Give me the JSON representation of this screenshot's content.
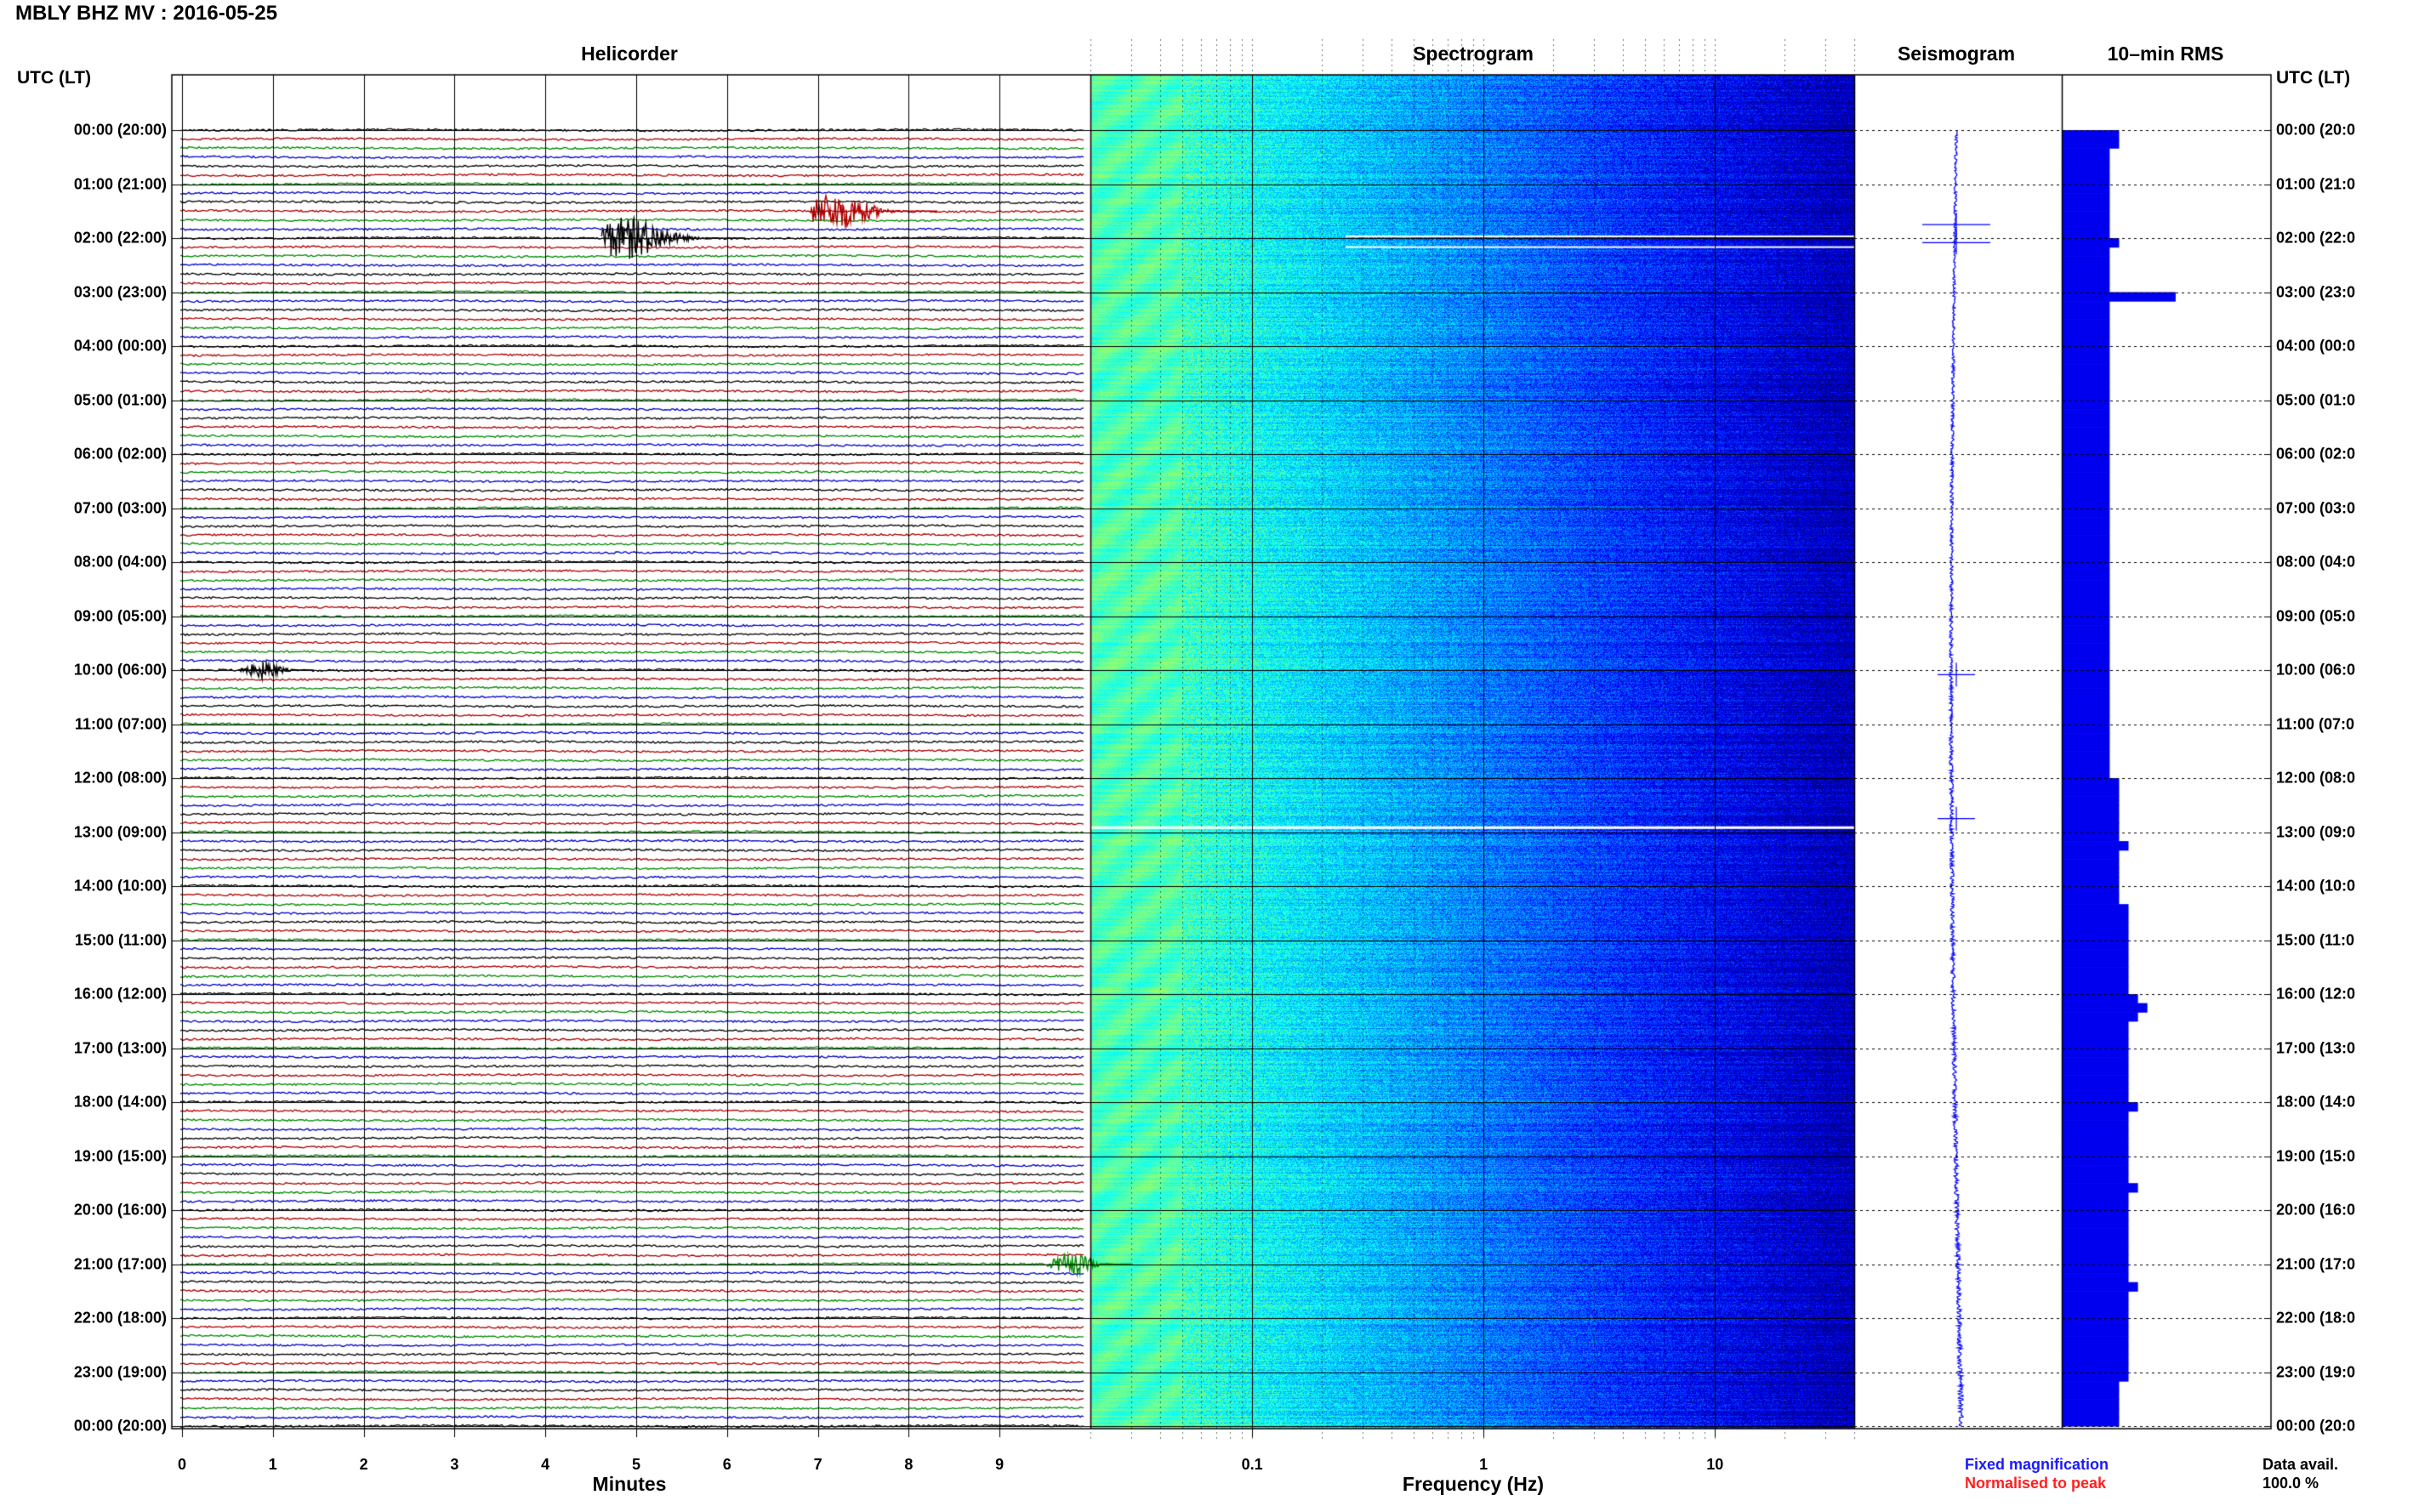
{
  "header": {
    "station_title": "MBLY BHZ MV : 2016-05-25"
  },
  "panels": {
    "helicorder": "Helicorder",
    "spectrogram": "Spectrogram",
    "seismogram": "Seismogram",
    "rms": "10–min RMS"
  },
  "time_axis": {
    "left_header": "UTC (LT)",
    "right_header": "UTC (LT)",
    "labels": [
      "00:00 (20:00)",
      "01:00 (21:00)",
      "02:00 (22:00)",
      "03:00 (23:00)",
      "04:00 (00:00)",
      "05:00 (01:00)",
      "06:00 (02:00)",
      "07:00 (03:00)",
      "08:00 (04:00)",
      "09:00 (05:00)",
      "10:00 (06:00)",
      "11:00 (07:00)",
      "12:00 (08:00)",
      "13:00 (09:00)",
      "14:00 (10:00)",
      "15:00 (11:00)",
      "16:00 (12:00)",
      "17:00 (13:00)",
      "18:00 (14:00)",
      "19:00 (15:00)",
      "20:00 (16:00)",
      "21:00 (17:00)",
      "22:00 (18:00)",
      "23:00 (19:00)",
      "00:00 (20:00)"
    ],
    "right_labels": [
      "00:00 (20:0",
      "01:00 (21:0",
      "02:00 (22:0",
      "03:00 (23:0",
      "04:00 (00:0",
      "05:00 (01:0",
      "06:00 (02:0",
      "07:00 (03:0",
      "08:00 (04:0",
      "09:00 (05:0",
      "10:00 (06:0",
      "11:00 (07:0",
      "12:00 (08:0",
      "13:00 (09:0",
      "14:00 (10:0",
      "15:00 (11:0",
      "16:00 (12:0",
      "17:00 (13:0",
      "18:00 (14:0",
      "19:00 (15:0",
      "20:00 (16:0",
      "21:00 (17:0",
      "22:00 (18:0",
      "23:00 (19:0",
      "00:00 (20:0"
    ]
  },
  "footer": {
    "fixed_magnification": "Fixed magnification",
    "normalised_to_peak": "Normalised to peak",
    "data_avail_label": "Data avail.",
    "data_avail_value": "100.0 %"
  },
  "colors": {
    "trace_cycle": [
      "#000000",
      "#b00000",
      "#008c00",
      "#0000c8"
    ],
    "seismogram": "#0000ff",
    "rms_bar": "#0000ee",
    "legend_fixed": "#1a1aff",
    "legend_peak": "#ff2020",
    "spectrogram_colormap": [
      "#00007f",
      "#0000ff",
      "#0080ff",
      "#00ffff",
      "#80ff80",
      "#ffff00"
    ]
  },
  "chart_data": [
    {
      "type": "line",
      "name": "helicorder",
      "xlabel": "Minutes",
      "x_ticks": [
        0,
        1,
        2,
        3,
        4,
        5,
        6,
        7,
        8,
        9
      ],
      "xlim": [
        0,
        10
      ],
      "rows": 144,
      "row_minutes": 10,
      "events": [
        {
          "time_utc": "01:30",
          "minute": 7.2,
          "amplitude": 3.0
        },
        {
          "time_utc": "02:00",
          "minute": 4.9,
          "amplitude": 3.5
        },
        {
          "time_utc": "10:00",
          "minute": 0.9,
          "amplitude": 1.5
        },
        {
          "time_utc": "21:00",
          "minute": 9.8,
          "amplitude": 1.8
        }
      ]
    },
    {
      "type": "heatmap",
      "name": "spectrogram",
      "xlabel": "Frequency (Hz)",
      "x_scale": "log",
      "xlim": [
        0.02,
        40
      ],
      "x_ticks": [
        0.1,
        1,
        10
      ],
      "x_tick_labels": [
        "0.1",
        "1",
        "10"
      ],
      "gaps_utc": [
        "01:58",
        "02:10",
        "12:55"
      ]
    },
    {
      "type": "line",
      "name": "seismogram",
      "description_values": "24 h trace, fixed magnification",
      "spikes_utc": [
        "01:45",
        "02:05",
        "10:05",
        "12:45"
      ]
    },
    {
      "type": "bar",
      "name": "10-min RMS",
      "orientation": "horizontal",
      "values_relative": [
        6,
        6,
        5,
        5,
        5,
        5,
        5,
        5,
        5,
        5,
        5,
        5,
        6,
        5,
        5,
        5,
        5,
        5,
        12,
        5,
        5,
        5,
        5,
        5,
        5,
        5,
        5,
        5,
        5,
        5,
        5,
        5,
        5,
        5,
        5,
        5,
        5,
        5,
        5,
        5,
        5,
        5,
        5,
        5,
        5,
        5,
        5,
        5,
        5,
        5,
        5,
        5,
        5,
        5,
        5,
        5,
        5,
        5,
        5,
        5,
        5,
        5,
        5,
        5,
        5,
        5,
        5,
        5,
        5,
        5,
        5,
        5,
        6,
        6,
        6,
        6,
        6,
        6,
        6,
        7,
        6,
        6,
        6,
        6,
        6,
        6,
        7,
        7,
        7,
        7,
        7,
        7,
        7,
        7,
        7,
        7,
        8,
        9,
        8,
        7,
        7,
        7,
        7,
        7,
        7,
        7,
        7,
        7,
        8,
        7,
        7,
        7,
        7,
        7,
        7,
        7,
        7,
        8,
        7,
        7,
        7,
        7,
        7,
        7,
        7,
        7,
        7,
        7,
        8,
        7,
        7,
        7,
        7,
        7,
        7,
        7,
        7,
        7,
        7,
        6,
        6,
        6,
        6,
        6
      ]
    }
  ]
}
